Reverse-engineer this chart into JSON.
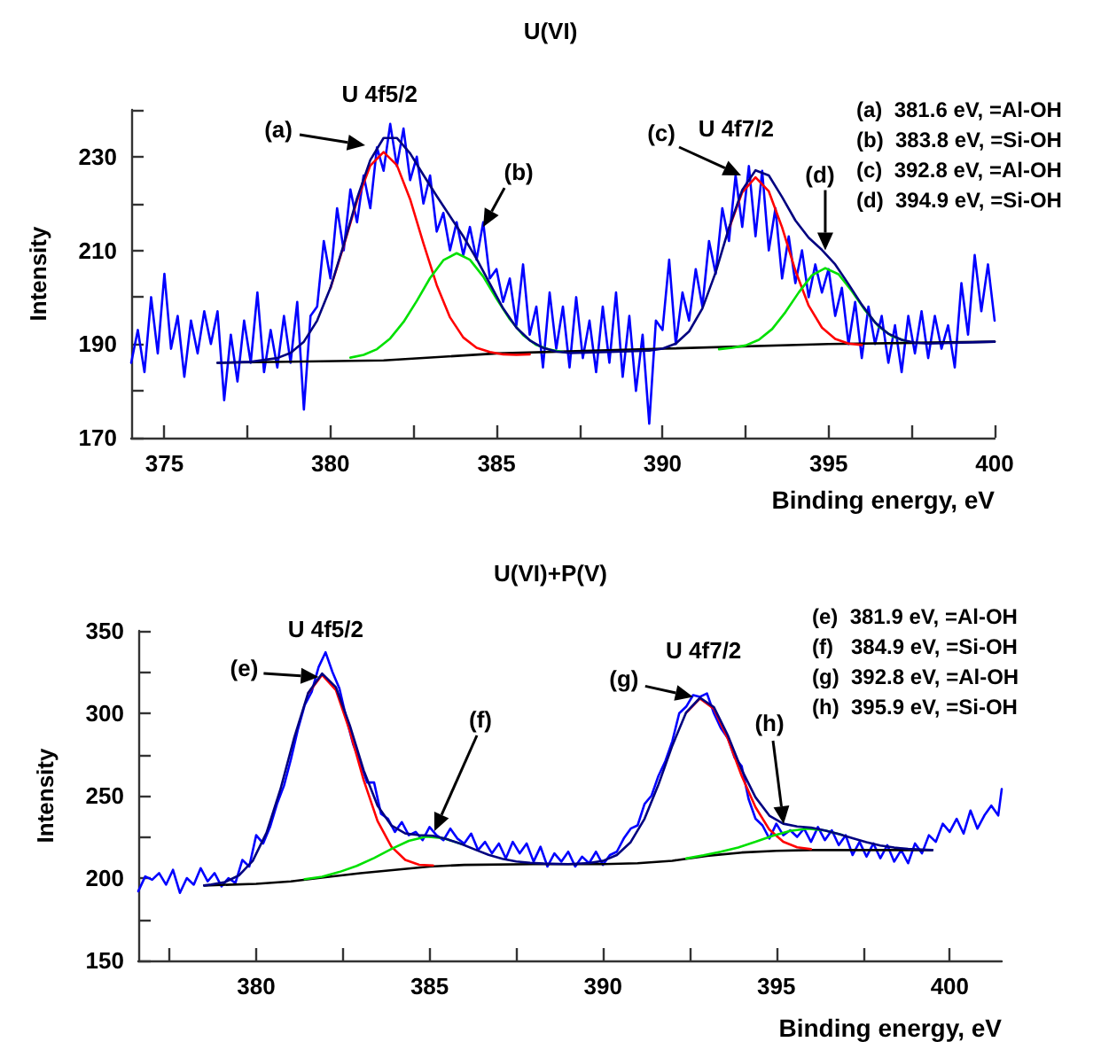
{
  "chart_data": [
    {
      "type": "line",
      "title": "U(VI)",
      "xlabel": "Binding energy, eV",
      "ylabel": "Intensity",
      "marker": "none",
      "line_style": "solid",
      "xlim": [
        374,
        400
      ],
      "ylim": [
        170,
        240
      ],
      "xticks": [
        375,
        {
          "value": 377.5,
          "label": null
        },
        380,
        {
          "value": 382.5,
          "label": null
        },
        385,
        {
          "value": 387.5,
          "label": null
        },
        390,
        {
          "value": 392.5,
          "label": null
        },
        395,
        {
          "value": 397.5,
          "label": null
        },
        400
      ],
      "yticks": [
        170,
        {
          "value": 180,
          "label": null
        },
        190,
        {
          "value": 200,
          "label": null
        },
        210,
        {
          "value": 220,
          "label": null
        },
        230,
        {
          "value": 240,
          "label": null
        }
      ],
      "annotations": [
        {
          "text": "U 4f5/2",
          "x": 381.8,
          "y": 234
        },
        "(a)",
        {
          "text": "(b)",
          "x": 384.6,
          "y": 215
        },
        {
          "text": "U 4f7/2",
          "x": 392.8,
          "y": 227
        },
        "(c)",
        {
          "text": "(d)",
          "x": 394.9,
          "y": 210
        },
        "(a)  381.6 eV, =Al-OH",
        "(b)  383.8 eV, =Si-OH",
        "(c)  392.8 eV, =Al-OH",
        "(d)  394.9 eV, =Si-OH"
      ],
      "series": [
        {
          "color": "#0000ff",
          "x": [
            374.0,
            374.2,
            374.4,
            374.6,
            374.8,
            375.0,
            375.2,
            375.4,
            375.6,
            375.8,
            376.0,
            376.2,
            376.4,
            376.6,
            376.8,
            377.0,
            377.2,
            377.4,
            377.6,
            377.8,
            378.0,
            378.2,
            378.4,
            378.6,
            378.8,
            379.0,
            379.2,
            379.4,
            379.6,
            379.8,
            380.0,
            380.2,
            380.4,
            380.6,
            380.8,
            381.0,
            381.2,
            381.4,
            381.6,
            381.8,
            382.0,
            382.2,
            382.4,
            382.6,
            382.8,
            383.0,
            383.2,
            383.4,
            383.6,
            383.8,
            384.0,
            384.2,
            384.4,
            384.6,
            384.8,
            385.0,
            385.2,
            385.4,
            385.6,
            385.8,
            386.0,
            386.2,
            386.4,
            386.6,
            386.8,
            387.0,
            387.2,
            387.4,
            387.6,
            387.8,
            388.0,
            388.2,
            388.4,
            388.6,
            388.8,
            389.0,
            389.2,
            389.4,
            389.6,
            389.8,
            390.0,
            390.2,
            390.4,
            390.6,
            390.8,
            391.0,
            391.2,
            391.4,
            391.6,
            391.8,
            392.0,
            392.2,
            392.4,
            392.6,
            392.8,
            393.0,
            393.2,
            393.4,
            393.6,
            393.8,
            394.0,
            394.2,
            394.4,
            394.6,
            394.8,
            395.0,
            395.2,
            395.4,
            395.6,
            395.8,
            396.0,
            396.2,
            396.4,
            396.6,
            396.8,
            397.0,
            397.2,
            397.4,
            397.6,
            397.8,
            398.0,
            398.2,
            398.4,
            398.6,
            398.8,
            399.0,
            399.2,
            399.4,
            399.6,
            399.8,
            400.0
          ],
          "values": [
            186,
            193,
            184,
            200,
            188,
            205,
            189,
            196,
            183,
            195,
            188,
            197,
            190,
            197,
            178,
            192,
            182,
            195,
            186,
            201,
            184,
            193,
            185,
            196,
            186,
            199,
            176,
            196,
            198,
            212,
            204,
            219,
            210,
            223,
            216,
            226,
            219,
            232,
            227,
            237,
            228,
            236,
            225,
            230,
            220,
            226,
            214,
            218,
            210,
            216,
            209,
            215,
            208,
            216,
            204,
            206,
            199,
            204,
            194,
            207,
            192,
            198,
            185,
            201,
            189,
            198,
            185,
            200,
            187,
            195,
            184,
            198,
            186,
            201,
            183,
            196,
            180,
            192,
            173,
            195,
            193,
            208,
            190,
            201,
            195,
            206,
            198,
            212,
            205,
            219,
            212,
            226,
            215,
            228,
            213,
            227,
            210,
            219,
            204,
            213,
            203,
            210,
            200,
            207,
            201,
            206,
            196,
            202,
            190,
            199,
            187,
            198,
            190,
            196,
            186,
            194,
            184,
            196,
            188,
            197,
            187,
            196,
            189,
            194,
            185,
            203,
            192,
            209,
            197,
            207,
            195
          ]
        },
        {
          "color": "#000000",
          "x": [
            376.6,
            381.6,
            385,
            390,
            395,
            400
          ],
          "values": [
            186,
            186.5,
            188,
            189,
            190,
            190.5
          ]
        },
        {
          "color": "#ff0000",
          "x": [
            380.0,
            380.4,
            380.8,
            381.2,
            381.6,
            382.0,
            382.4,
            382.8,
            383.2,
            383.6,
            384.0,
            384.4,
            384.8,
            385.2,
            385.6,
            386.0
          ],
          "values": [
            201.9,
            211.0,
            220.6,
            228.1,
            231.0,
            228.2,
            220.9,
            211.5,
            202.6,
            195.7,
            191.4,
            189.2,
            188.3,
            187.8,
            187.7,
            187.8
          ]
        },
        {
          "color": "#00e000",
          "x": [
            380.6,
            381.0,
            381.4,
            381.8,
            382.2,
            382.6,
            383.0,
            383.4,
            383.8,
            384.2,
            384.6,
            385.0,
            385.4,
            385.8,
            386.2,
            386.6,
            387.0
          ],
          "values": [
            187.1,
            187.7,
            188.9,
            191.2,
            194.7,
            199.2,
            204.1,
            207.9,
            209.4,
            208.0,
            204.4,
            199.7,
            195.3,
            191.9,
            189.8,
            188.8,
            188.3
          ]
        },
        {
          "color": "#ff0000",
          "x": [
            392.0,
            392.4,
            392.8,
            393.2,
            393.6,
            394.0,
            394.4,
            394.8,
            395.2,
            395.6,
            396.0
          ],
          "values": [
            214.6,
            222.4,
            225.6,
            222.6,
            214.9,
            205.7,
            198.2,
            193.5,
            191.1,
            190.1,
            189.8
          ]
        },
        {
          "color": "#00e000",
          "x": [
            391.7,
            392.1,
            392.5,
            392.9,
            393.3,
            393.7,
            394.1,
            394.5,
            394.9,
            395.3,
            395.7,
            396.1,
            396.5,
            396.9,
            397.3
          ],
          "values": [
            188.9,
            189.2,
            189.7,
            190.9,
            193.2,
            196.8,
            201.0,
            204.7,
            206.2,
            204.9,
            201.3,
            197.2,
            193.8,
            191.7,
            190.7
          ]
        },
        {
          "color": "#000080",
          "x": [
            376.6,
            377.6,
            378.4,
            378.8,
            379.2,
            379.6,
            380.0,
            380.4,
            380.8,
            381.2,
            381.6,
            382.0,
            382.4,
            382.8,
            383.2,
            383.6,
            384.0,
            384.4,
            384.8,
            385.2,
            385.6,
            386.0,
            386.4,
            386.8,
            387.2,
            388.4,
            389.6,
            390.0,
            390.4,
            390.8,
            391.2,
            391.6,
            392.0,
            392.4,
            392.8,
            393.2,
            393.6,
            394.0,
            394.4,
            394.8,
            395.2,
            395.6,
            396.0,
            396.4,
            396.8,
            397.2,
            397.6,
            398.0,
            400.0
          ],
          "values": [
            186.0,
            186.2,
            187.0,
            188.1,
            190.5,
            195.0,
            202.0,
            211.2,
            221.1,
            229.3,
            234.0,
            234.0,
            230.7,
            226.1,
            221.6,
            217.3,
            213.0,
            208.2,
            202.9,
            197.6,
            193.5,
            190.8,
            189.2,
            188.4,
            188.1,
            188.3,
            188.6,
            189.0,
            190.1,
            192.7,
            197.6,
            205.3,
            214.8,
            222.9,
            227.1,
            226.0,
            221.4,
            216.4,
            212.7,
            210.1,
            207.0,
            202.8,
            198.4,
            194.6,
            192.2,
            190.9,
            190.3,
            190.1,
            190.5
          ]
        }
      ]
    },
    {
      "type": "line",
      "title": "U(VI)+P(V)",
      "xlabel": "Binding energy, eV",
      "ylabel": "Intensity",
      "marker": "none",
      "line_style": "solid",
      "xlim": [
        376.6,
        401.5
      ],
      "ylim": [
        150,
        350
      ],
      "xticks": [
        {
          "value": 377.5,
          "label": null
        },
        380,
        {
          "value": 382.5,
          "label": null
        },
        385,
        {
          "value": 387.5,
          "label": null
        },
        390,
        {
          "value": 392.5,
          "label": null
        },
        395,
        {
          "value": 397.5,
          "label": null
        },
        400
      ],
      "yticks": [
        150,
        {
          "value": 175,
          "label": null
        },
        200,
        {
          "value": 225,
          "label": null
        },
        250,
        {
          "value": 275,
          "label": null
        },
        300,
        {
          "value": 325,
          "label": null
        },
        350
      ],
      "annotations": [
        {
          "text": "U 4f5/2",
          "x": 381.9,
          "y": 324
        },
        {
          "text": "(e)",
          "x": 381.8,
          "y": 322
        },
        "(f)",
        {
          "text": "U 4f7/2",
          "x": 392.8,
          "y": 309
        },
        {
          "text": "(g)",
          "x": 392.6,
          "y": 310
        },
        "(h)",
        "(e)  381.9 eV, =Al-OH",
        "(f)   384.9 eV, =Si-OH",
        "(g)  392.8 eV, =Al-OH",
        "(h)  395.9 eV, =Si-OH"
      ],
      "series": [
        {
          "color": "#0000ff",
          "x": [
            376.6,
            376.8,
            377.0,
            377.2,
            377.4,
            377.6,
            377.8,
            378.0,
            378.2,
            378.4,
            378.6,
            378.8,
            379.0,
            379.2,
            379.4,
            379.6,
            379.8,
            380.0,
            380.2,
            380.4,
            380.6,
            380.8,
            381.0,
            381.2,
            381.4,
            381.6,
            381.8,
            382.0,
            382.2,
            382.4,
            382.6,
            382.8,
            383.0,
            383.2,
            383.4,
            383.6,
            383.8,
            384.0,
            384.2,
            384.4,
            384.6,
            384.8,
            385.0,
            385.2,
            385.4,
            385.6,
            385.8,
            386.0,
            386.2,
            386.4,
            386.6,
            386.8,
            387.0,
            387.2,
            387.4,
            387.6,
            387.8,
            388.0,
            388.2,
            388.4,
            388.6,
            388.8,
            389.0,
            389.2,
            389.4,
            389.6,
            389.8,
            390.0,
            390.2,
            390.4,
            390.6,
            390.8,
            391.0,
            391.2,
            391.4,
            391.6,
            391.8,
            392.0,
            392.2,
            392.4,
            392.6,
            392.8,
            393.0,
            393.2,
            393.4,
            393.6,
            393.8,
            394.0,
            394.2,
            394.4,
            394.6,
            394.8,
            395.0,
            395.2,
            395.4,
            395.6,
            395.8,
            396.0,
            396.2,
            396.4,
            396.6,
            396.8,
            397.0,
            397.2,
            397.4,
            397.6,
            397.8,
            398.0,
            398.2,
            398.4,
            398.6,
            398.8,
            399.0,
            399.2,
            399.4,
            399.6,
            399.8,
            400.0,
            400.2,
            400.4,
            400.6,
            400.8,
            401.0,
            401.2,
            401.4,
            401.5
          ],
          "values": [
            192,
            201,
            199,
            203,
            196,
            205,
            191,
            200,
            196,
            206,
            198,
            203,
            195,
            200,
            197,
            211,
            207,
            226,
            221,
            231,
            245,
            256,
            272,
            290,
            305,
            313,
            328,
            337,
            325,
            315,
            297,
            281,
            270,
            258,
            258,
            239,
            236,
            228,
            234,
            226,
            228,
            223,
            231,
            226,
            223,
            230,
            224,
            221,
            227,
            217,
            222,
            215,
            221,
            212,
            222,
            215,
            221,
            210,
            219,
            207,
            215,
            210,
            216,
            207,
            213,
            209,
            216,
            208,
            214,
            216,
            224,
            230,
            232,
            245,
            250,
            262,
            271,
            283,
            300,
            304,
            311,
            310,
            312,
            300,
            291,
            285,
            273,
            268,
            248,
            236,
            232,
            224,
            233,
            226,
            229,
            225,
            230,
            222,
            231,
            223,
            229,
            220,
            226,
            214,
            222,
            213,
            221,
            212,
            220,
            210,
            217,
            209,
            221,
            215,
            226,
            222,
            233,
            228,
            236,
            227,
            241,
            230,
            238,
            244,
            238,
            254
          ]
        },
        {
          "color": "#000000",
          "x": [
            378.5,
            380,
            381,
            382,
            383,
            384,
            385,
            386,
            388,
            390,
            391,
            392,
            393,
            394,
            395,
            396,
            399.5
          ],
          "values": [
            195.5,
            196.5,
            198,
            200.5,
            203,
            205,
            207,
            208,
            208.5,
            208.5,
            209,
            210.5,
            213.5,
            215.5,
            216.5,
            217,
            217
          ]
        },
        {
          "color": "#ff0000",
          "x": [
            381.5,
            381.9,
            382.3,
            382.7,
            383.1,
            383.5,
            383.9,
            384.3,
            384.7,
            385.1
          ],
          "values": [
            312.1,
            323.3,
            314.1,
            289.3,
            259.5,
            234.6,
            219.0,
            211.0,
            208.1,
            207.7
          ]
        },
        {
          "color": "#00e000",
          "x": [
            381.4,
            381.9,
            382.4,
            382.9,
            383.4,
            383.9,
            384.4,
            384.9,
            385.4,
            385.9
          ],
          "values": [
            199.3,
            200.8,
            203.7,
            207.4,
            212.2,
            217.7,
            222.6,
            225.1,
            224.2,
            220.8
          ]
        },
        {
          "color": "#ff0000",
          "x": [
            392.4,
            392.8,
            393.2,
            393.6,
            394.0,
            394.4,
            394.8,
            395.2,
            395.6,
            396.0
          ],
          "values": [
            300.3,
            308.9,
            302.7,
            284.6,
            262.1,
            243.0,
            229.4,
            222.0,
            218.7,
            217.6
          ]
        },
        {
          "color": "#00e000",
          "x": [
            392.4,
            392.9,
            393.4,
            393.9,
            394.4,
            394.9,
            395.4,
            395.9,
            396.4,
            396.9
          ],
          "values": [
            211.9,
            213.8,
            216.0,
            218.6,
            222.0,
            225.7,
            228.6,
            230.0,
            228.9,
            226.2
          ]
        },
        {
          "color": "#000080",
          "x": [
            378.5,
            378.7,
            379.1,
            379.5,
            379.9,
            380.3,
            380.7,
            381.1,
            381.5,
            381.9,
            382.3,
            382.7,
            383.1,
            383.5,
            383.9,
            384.3,
            384.7,
            385.1,
            385.5,
            385.9,
            386.3,
            386.7,
            387.1,
            387.5,
            387.9,
            388.3,
            389.0,
            389.6,
            390.0,
            390.4,
            390.8,
            391.2,
            391.6,
            392.0,
            392.4,
            392.8,
            393.2,
            393.6,
            394.0,
            394.4,
            394.8,
            395.2,
            395.6,
            396.0,
            396.4,
            396.8,
            397.2,
            397.6,
            398.0,
            398.4,
            398.8,
            399.2,
            399.5
          ],
          "values": [
            195.5,
            196.1,
            197.6,
            201.6,
            210.4,
            227.6,
            253.9,
            285.4,
            312.4,
            324.1,
            315.8,
            292.7,
            265.4,
            243.9,
            231.9,
            227.1,
            226.1,
            225.7,
            223.6,
            220.8,
            217.4,
            214.1,
            211.7,
            210.1,
            209.3,
            208.8,
            208.5,
            209.1,
            210.4,
            214.0,
            221.8,
            236.0,
            256.7,
            280.3,
            300.5,
            309.4,
            303.7,
            286.7,
            265.8,
            249.0,
            237.9,
            233.0,
            231.3,
            230.6,
            228.9,
            226.8,
            224.2,
            221.8,
            219.8,
            218.5,
            217.7,
            217.3,
            217.0
          ]
        }
      ]
    }
  ]
}
